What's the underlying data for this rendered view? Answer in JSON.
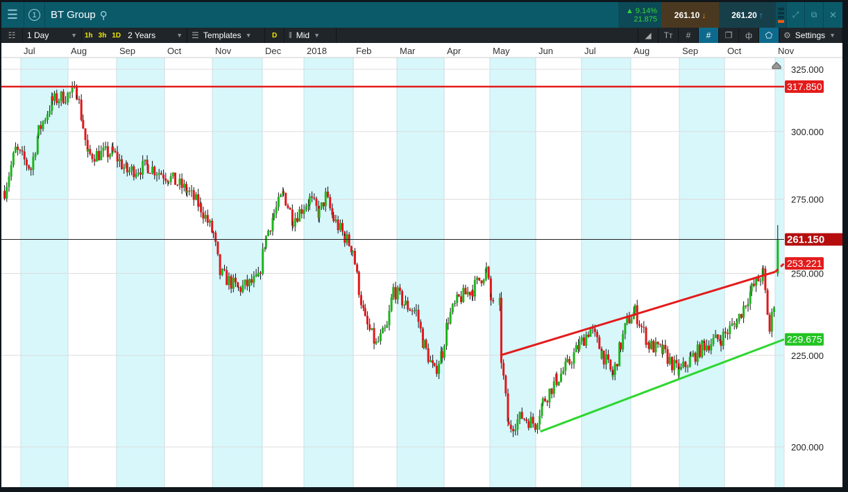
{
  "header": {
    "instrument": "BT Group",
    "workspace_number": "1",
    "change_pct": "9.14%",
    "change_abs": "21.875",
    "sell_price": "261.10",
    "buy_price": "261.20"
  },
  "toolbar": {
    "interval": "1 Day",
    "quick_1h": "1h",
    "quick_3h": "3h",
    "quick_1d": "1D",
    "range": "2 Years",
    "templates": "Templates",
    "d_label": "D",
    "price_type": "Mid",
    "settings": "Settings"
  },
  "colors": {
    "up": "#1cb51c",
    "down": "#e0171a",
    "resistance": "#e31b1b",
    "support": "#2ed62e",
    "last": "#b50d0d",
    "band": "#d7f7fb"
  },
  "chart_data": {
    "type": "candlestick",
    "y_scale": "log",
    "ylim": [
      195,
      330
    ],
    "y_ticks": [
      "325.000",
      "300.000",
      "275.000",
      "250.000",
      "225.000",
      "200.000"
    ],
    "y_tick_values": [
      325,
      300,
      275,
      250,
      225,
      200
    ],
    "x_tick_labels": [
      "Jul",
      "Aug",
      "Sep",
      "Oct",
      "Nov",
      "Dec",
      "2018",
      "Feb",
      "Mar",
      "Apr",
      "May",
      "Jun",
      "Jul",
      "Aug",
      "Sep",
      "Oct",
      "Nov"
    ],
    "closes": [
      [
        "2017-06-20",
        278
      ],
      [
        "2017-06-27",
        293
      ],
      [
        "2017-07-07",
        286
      ],
      [
        "2017-07-12",
        300
      ],
      [
        "2017-07-21",
        312
      ],
      [
        "2017-08-06",
        316
      ],
      [
        "2017-08-10",
        302
      ],
      [
        "2017-08-13",
        291
      ],
      [
        "2017-08-29",
        292
      ],
      [
        "2017-09-07",
        285
      ],
      [
        "2017-09-20",
        287
      ],
      [
        "2017-10-03",
        283
      ],
      [
        "2017-10-15",
        278
      ],
      [
        "2017-10-24",
        272
      ],
      [
        "2017-11-01",
        263
      ],
      [
        "2017-11-05",
        250
      ],
      [
        "2017-11-16",
        245
      ],
      [
        "2017-11-28",
        248
      ],
      [
        "2017-12-03",
        262
      ],
      [
        "2017-12-09",
        270
      ],
      [
        "2017-12-16",
        277
      ],
      [
        "2017-12-23",
        268
      ],
      [
        "2018-01-04",
        275
      ],
      [
        "2018-01-10",
        270
      ],
      [
        "2018-01-14",
        276
      ],
      [
        "2018-01-19",
        268
      ],
      [
        "2018-01-26",
        262
      ],
      [
        "2018-01-31",
        258
      ],
      [
        "2018-02-04",
        245
      ],
      [
        "2018-02-08",
        235
      ],
      [
        "2018-02-15",
        228
      ],
      [
        "2018-02-22",
        233
      ],
      [
        "2018-02-26",
        245
      ],
      [
        "2018-03-06",
        240
      ],
      [
        "2018-03-13",
        238
      ],
      [
        "2018-03-18",
        228
      ],
      [
        "2018-03-25",
        220
      ],
      [
        "2018-03-30",
        226
      ],
      [
        "2018-04-03",
        236
      ],
      [
        "2018-04-10",
        242
      ],
      [
        "2018-04-19",
        245
      ],
      [
        "2018-04-28",
        251
      ],
      [
        "2018-05-01",
        242
      ],
      [
        "2018-05-04",
        237
      ],
      [
        "2018-05-07",
        240
      ],
      [
        "2018-05-08",
        224
      ],
      [
        "2018-05-13",
        205
      ],
      [
        "2018-05-22",
        208
      ],
      [
        "2018-05-31",
        206
      ],
      [
        "2018-06-05",
        212
      ],
      [
        "2018-06-14",
        218
      ],
      [
        "2018-06-21",
        222
      ],
      [
        "2018-06-29",
        228
      ],
      [
        "2018-07-06",
        233
      ],
      [
        "2018-07-13",
        226
      ],
      [
        "2018-07-20",
        219
      ],
      [
        "2018-07-25",
        228
      ],
      [
        "2018-07-29",
        235
      ],
      [
        "2018-08-03",
        238
      ],
      [
        "2018-08-12",
        228
      ],
      [
        "2018-08-21",
        226
      ],
      [
        "2018-08-31",
        220
      ],
      [
        "2018-09-08",
        224
      ],
      [
        "2018-09-17",
        228
      ],
      [
        "2018-09-28",
        230
      ],
      [
        "2018-10-08",
        235
      ],
      [
        "2018-10-17",
        245
      ],
      [
        "2018-10-24",
        250
      ],
      [
        "2018-10-28",
        232
      ],
      [
        "2018-10-31",
        242
      ],
      [
        "2018-11-02",
        261
      ]
    ],
    "horizontal_line": {
      "value": 317.85,
      "label": "317.850"
    },
    "last_price": {
      "value": 261.15,
      "label": "261.150"
    },
    "resistance_channel": {
      "start": [
        "2018-05-08",
        225
      ],
      "end": [
        "2018-11-01",
        250.5
      ],
      "projected_label": "253.221",
      "projected_value": 253.221
    },
    "support_channel": {
      "start": [
        "2018-06-04",
        204
      ],
      "end_label": "229.675",
      "end_value": 229.675
    }
  }
}
